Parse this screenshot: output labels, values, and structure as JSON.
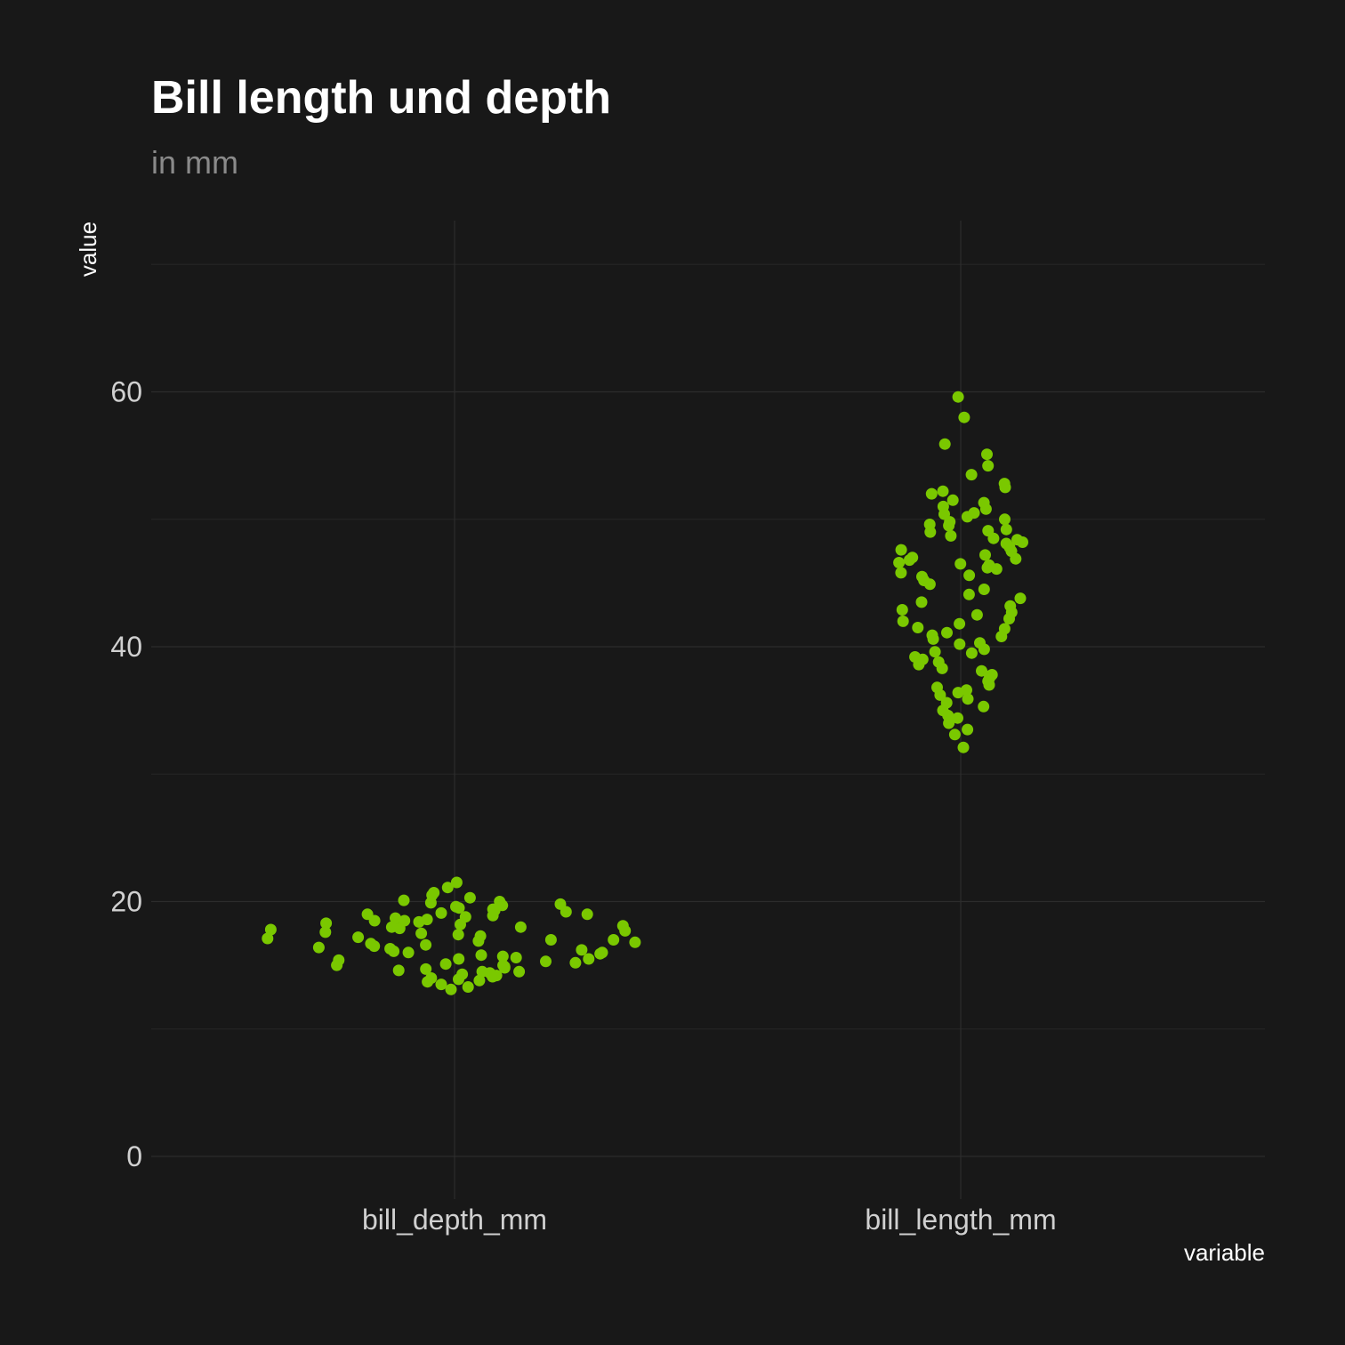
{
  "chart_data": {
    "type": "scatter",
    "title": "Bill length und depth",
    "subtitle": "in mm",
    "xlabel": "variable",
    "ylabel": "value",
    "categories": [
      "bill_depth_mm",
      "bill_length_mm"
    ],
    "y_ticks": [
      0,
      20,
      40,
      60
    ],
    "ylim": [
      -2,
      73
    ],
    "grid": true,
    "point_color": "#7ac800",
    "background": "#181818",
    "series": [
      {
        "category": "bill_depth_mm",
        "values": [
          13.1,
          13.3,
          13.5,
          13.7,
          13.8,
          13.9,
          14.0,
          14.1,
          14.2,
          14.3,
          14.4,
          14.5,
          14.5,
          14.6,
          14.7,
          14.8,
          14.9,
          15.0,
          15.0,
          15.1,
          15.2,
          15.3,
          15.4,
          15.5,
          15.5,
          15.6,
          15.7,
          15.8,
          15.9,
          16.0,
          16.0,
          16.1,
          16.2,
          16.3,
          16.4,
          16.5,
          16.6,
          16.7,
          16.8,
          16.9,
          17.0,
          17.0,
          17.1,
          17.2,
          17.3,
          17.4,
          17.5,
          17.6,
          17.7,
          17.8,
          17.9,
          18.0,
          18.0,
          18.1,
          18.2,
          18.3,
          18.4,
          18.5,
          18.5,
          18.6,
          18.7,
          18.8,
          18.9,
          19.0,
          19.0,
          19.1,
          19.2,
          19.3,
          19.4,
          19.5,
          19.6,
          19.7,
          19.8,
          19.9,
          20.0,
          20.1,
          20.3,
          20.5,
          20.7,
          21.1,
          21.5
        ]
      },
      {
        "category": "bill_length_mm",
        "values": [
          32.1,
          33.1,
          33.5,
          34.0,
          34.4,
          34.6,
          35.0,
          35.3,
          35.6,
          35.9,
          36.2,
          36.4,
          36.6,
          36.8,
          37.0,
          37.3,
          37.5,
          37.7,
          37.8,
          38.1,
          38.3,
          38.6,
          38.8,
          39.0,
          39.2,
          39.5,
          39.6,
          39.8,
          40.2,
          40.3,
          40.6,
          40.8,
          40.9,
          41.1,
          41.4,
          41.5,
          41.8,
          42.0,
          42.2,
          42.5,
          42.7,
          42.9,
          43.2,
          43.5,
          43.8,
          44.1,
          44.5,
          44.9,
          45.2,
          45.5,
          45.6,
          45.8,
          46.1,
          46.2,
          46.4,
          46.5,
          46.6,
          46.8,
          46.9,
          47.0,
          47.2,
          47.5,
          47.6,
          47.8,
          48.1,
          48.2,
          48.4,
          48.5,
          48.7,
          49.0,
          49.1,
          49.2,
          49.5,
          49.6,
          49.8,
          50.0,
          50.2,
          50.4,
          50.5,
          50.8,
          51.0,
          51.3,
          51.5,
          52.0,
          52.2,
          52.5,
          52.8,
          53.5,
          54.2,
          55.1,
          55.9,
          58.0,
          59.6
        ]
      }
    ]
  }
}
